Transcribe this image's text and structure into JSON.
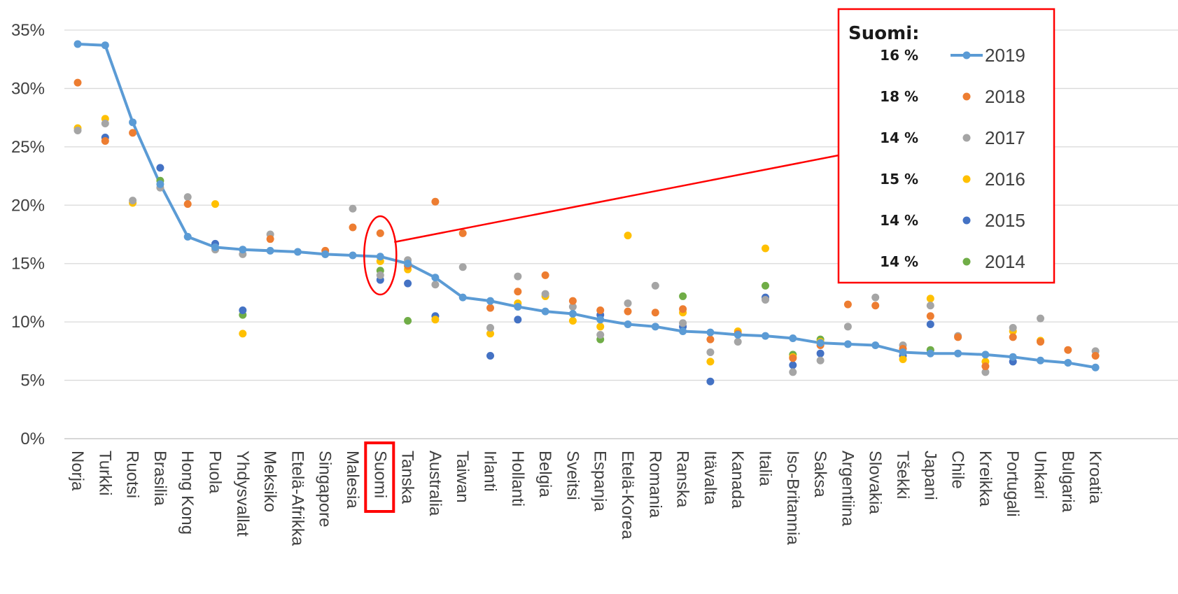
{
  "chart_data": {
    "type": "scatter",
    "highlight_category": "Suomi",
    "ylim": [
      0,
      0.35
    ],
    "yticks": [
      "0%",
      "5%",
      "10%",
      "15%",
      "20%",
      "25%",
      "30%",
      "35%"
    ],
    "grid": true,
    "categories": [
      "Norja",
      "Turkki",
      "Ruotsi",
      "Brasilia",
      "Hong Kong",
      "Puola",
      "Yhdysvallat",
      "Meksiko",
      "Etelä-Afrikka",
      "Singapore",
      "Malesia",
      "Suomi",
      "Tanska",
      "Australia",
      "Taiwan",
      "Irlanti",
      "Hollanti",
      "Belgia",
      "Sveitsi",
      "Espanja",
      "Etelä-Korea",
      "Romania",
      "Ranska",
      "Itävalta",
      "Kanada",
      "Italia",
      "Iso-Britannia",
      "Saksa",
      "Argentiina",
      "Slovakia",
      "Tšekki",
      "Japani",
      "Chile",
      "Kreikka",
      "Portugali",
      "Unkari",
      "Bulgaria",
      "Kroatia"
    ],
    "series": [
      {
        "name": "2019",
        "color": "#5B9BD5",
        "style": "line",
        "values": [
          0.338,
          0.337,
          0.271,
          0.218,
          0.173,
          0.164,
          0.162,
          0.161,
          0.16,
          0.158,
          0.157,
          0.156,
          0.15,
          0.138,
          0.121,
          0.118,
          0.113,
          0.109,
          0.107,
          0.102,
          0.098,
          0.096,
          0.092,
          0.091,
          0.089,
          0.088,
          0.086,
          0.082,
          0.081,
          0.08,
          0.074,
          0.073,
          0.073,
          0.072,
          0.07,
          0.067,
          0.065,
          0.061
        ]
      },
      {
        "name": "2018",
        "color": "#ED7D31",
        "style": "dot",
        "values": [
          0.305,
          0.255,
          0.262,
          null,
          0.201,
          null,
          null,
          0.171,
          null,
          0.161,
          0.181,
          0.176,
          0.148,
          0.203,
          0.176,
          0.112,
          0.126,
          0.14,
          0.118,
          0.11,
          0.109,
          0.108,
          0.111,
          0.085,
          0.09,
          null,
          0.069,
          0.08,
          0.115,
          0.114,
          0.077,
          0.105,
          0.087,
          0.062,
          0.087,
          0.083,
          0.076,
          0.071
        ]
      },
      {
        "name": "2017",
        "color": "#A5A5A5",
        "style": "dot",
        "values": [
          0.264,
          0.27,
          0.204,
          0.215,
          0.207,
          0.162,
          0.158,
          0.175,
          null,
          0.158,
          0.197,
          0.14,
          0.153,
          0.132,
          0.147,
          0.095,
          0.139,
          0.124,
          0.113,
          0.089,
          0.116,
          0.131,
          0.099,
          0.074,
          0.083,
          0.119,
          0.057,
          0.067,
          0.096,
          0.121,
          0.08,
          0.114,
          0.088,
          0.057,
          0.095,
          0.103,
          null,
          0.075
        ]
      },
      {
        "name": "2016",
        "color": "#FFC000",
        "style": "dot",
        "values": [
          0.266,
          0.274,
          0.202,
          null,
          null,
          0.201,
          0.09,
          null,
          null,
          null,
          null,
          0.152,
          0.145,
          0.102,
          null,
          0.09,
          0.116,
          0.122,
          0.101,
          0.096,
          0.174,
          null,
          0.108,
          0.066,
          0.092,
          0.163,
          0.07,
          0.083,
          null,
          null,
          0.068,
          0.12,
          null,
          0.066,
          0.092,
          0.084,
          null,
          null
        ]
      },
      {
        "name": "2015",
        "color": "#4472C4",
        "style": "dot",
        "values": [
          null,
          0.258,
          null,
          0.232,
          null,
          0.167,
          0.11,
          null,
          null,
          null,
          null,
          0.136,
          0.133,
          0.105,
          null,
          0.071,
          0.102,
          null,
          null,
          0.106,
          null,
          null,
          0.096,
          0.049,
          null,
          0.121,
          0.063,
          0.073,
          null,
          null,
          0.071,
          0.098,
          null,
          null,
          0.066,
          null,
          null,
          null
        ]
      },
      {
        "name": "2014",
        "color": "#70AD47",
        "style": "dot",
        "values": [
          null,
          null,
          null,
          0.221,
          null,
          null,
          0.106,
          null,
          null,
          null,
          null,
          0.144,
          0.101,
          null,
          null,
          null,
          null,
          null,
          null,
          0.085,
          null,
          null,
          0.122,
          null,
          null,
          0.131,
          0.072,
          0.085,
          null,
          null,
          null,
          0.076,
          null,
          null,
          null,
          null,
          null,
          null
        ]
      }
    ],
    "legend": {
      "title": "Suomi:",
      "placement": "top-right",
      "entries": [
        {
          "year": "2019",
          "value": "16 %"
        },
        {
          "year": "2018",
          "value": "18 %"
        },
        {
          "year": "2017",
          "value": "14 %"
        },
        {
          "year": "2016",
          "value": "15 %"
        },
        {
          "year": "2015",
          "value": "14 %"
        },
        {
          "year": "2014",
          "value": "14 %"
        }
      ]
    },
    "annotation_color": "#FF0000"
  }
}
